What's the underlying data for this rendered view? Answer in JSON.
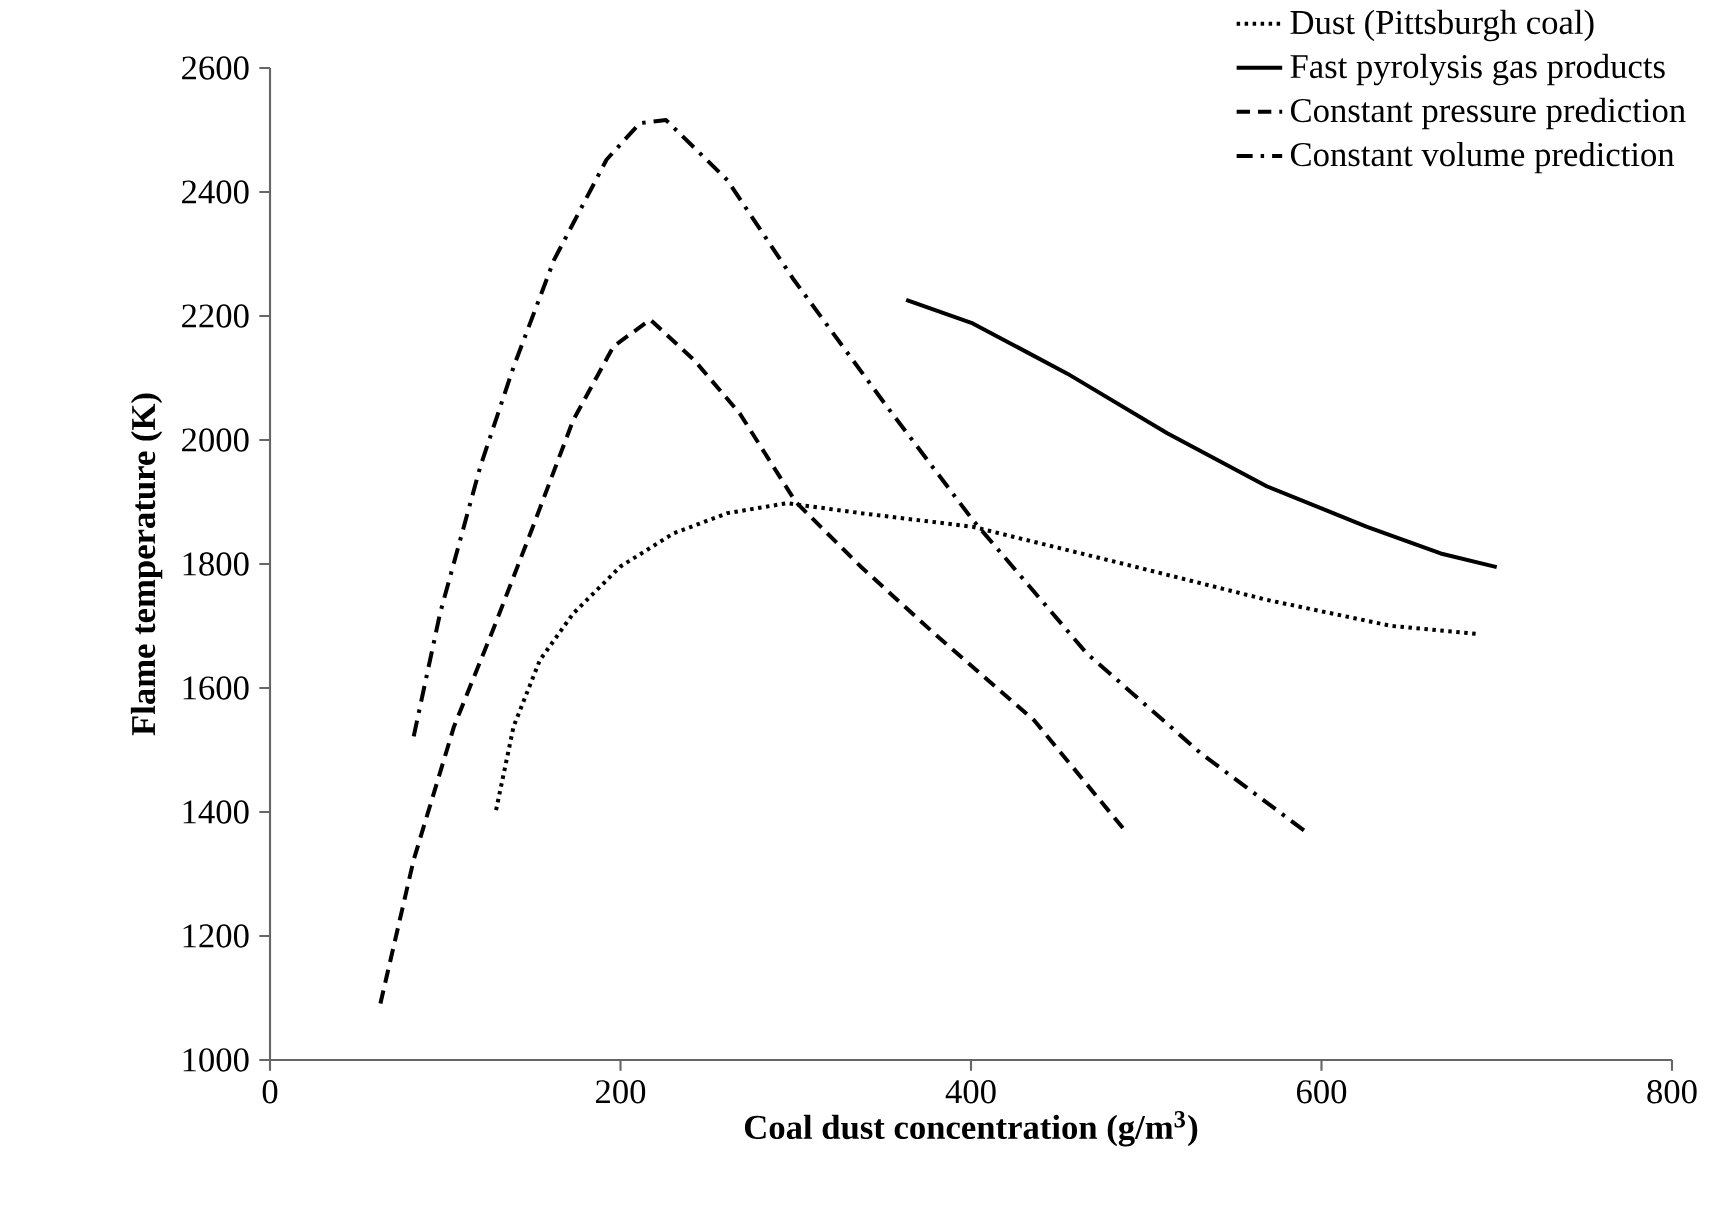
{
  "chart_data": {
    "type": "line",
    "xlabel": "Coal dust concentration (g/m$^{3}$)",
    "ylabel": "Flame temperature (K)",
    "xlim": [
      0,
      800
    ],
    "xticks": [
      0,
      200,
      400,
      600,
      800
    ],
    "ylim": [
      1000,
      2600
    ],
    "yticks": [
      1000,
      1200,
      1400,
      1600,
      1800,
      2000,
      2200,
      2400,
      2600
    ],
    "grid": false,
    "legend": "top right",
    "marker": "none",
    "series": [
      {
        "name": "Dust (Pittsburgh coal)",
        "color": "#000000",
        "line_style": "dotted",
        "x": [
          129,
          139,
          154,
          173,
          200,
          230,
          261,
          295,
          337,
          401,
          493,
          569,
          640,
          690
        ],
        "values": [
          1403,
          1538,
          1645,
          1720,
          1796,
          1849,
          1882,
          1898,
          1882,
          1860,
          1796,
          1742,
          1700,
          1687
        ]
      },
      {
        "name": "Fast pyrolysis gas products",
        "color": "#000000",
        "line_style": "solid",
        "x": [
          363,
          401,
          455,
          512,
          569,
          626,
          668,
          700
        ],
        "values": [
          2226,
          2188,
          2107,
          2011,
          1925,
          1860,
          1817,
          1795
        ]
      },
      {
        "name": "Constant pressure prediction",
        "color": "#000000",
        "line_style": "dashed",
        "x": [
          63,
          82,
          105,
          128,
          150,
          173,
          196,
          217,
          242,
          268,
          300,
          337,
          379,
          436,
          489
        ],
        "values": [
          1091,
          1323,
          1538,
          1699,
          1860,
          2032,
          2151,
          2194,
          2129,
          2043,
          1900,
          1796,
          1688,
          1548,
          1366
        ]
      },
      {
        "name": "Constant volume prediction",
        "color": "#000000",
        "line_style": "dashdot",
        "x": [
          82,
          97,
          120,
          139,
          162,
          192,
          211,
          226,
          261,
          299,
          352,
          401,
          466,
          531,
          592
        ],
        "values": [
          1522,
          1720,
          1957,
          2118,
          2290,
          2452,
          2511,
          2516,
          2419,
          2258,
          2054,
          1871,
          1656,
          1495,
          1366
        ]
      }
    ]
  }
}
